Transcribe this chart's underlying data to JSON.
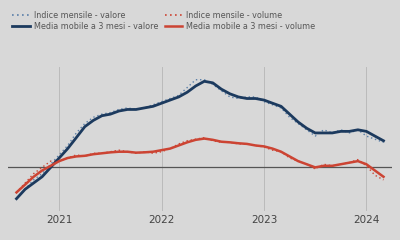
{
  "legend": [
    {
      "label": "Indice mensile - valore",
      "color": "#5a7fa8",
      "linestyle": "dotted",
      "linewidth": 1.0
    },
    {
      "label": "Indice mensile - volume",
      "color": "#cc4433",
      "linestyle": "dotted",
      "linewidth": 1.0
    },
    {
      "label": "Media mobile a 3 mesi - valore",
      "color": "#1c3a5e",
      "linestyle": "solid",
      "linewidth": 2.0
    },
    {
      "label": "Media mobile a 3 mesi - volume",
      "color": "#cc4433",
      "linestyle": "solid",
      "linewidth": 1.8
    }
  ],
  "background_color": "#d8d8d8",
  "plot_bg_color": "#d8d8d8",
  "grid_color": "#bbbbbb",
  "zero_line_color": "#555555",
  "xticks": [
    2021.0,
    2022.0,
    2023.0,
    2024.0
  ],
  "xlim": [
    2020.5,
    2024.25
  ],
  "ylim": [
    -14,
    32
  ],
  "legend_fontsize": 5.8,
  "tick_fontsize": 7.5,
  "t_valore_monthly": [
    2020.583,
    2020.667,
    2020.75,
    2020.833,
    2020.917,
    2021.0,
    2021.083,
    2021.167,
    2021.25,
    2021.333,
    2021.417,
    2021.5,
    2021.583,
    2021.667,
    2021.75,
    2021.833,
    2021.917,
    2022.0,
    2022.083,
    2022.167,
    2022.25,
    2022.333,
    2022.417,
    2022.5,
    2022.583,
    2022.667,
    2022.75,
    2022.833,
    2022.917,
    2023.0,
    2023.083,
    2023.167,
    2023.25,
    2023.333,
    2023.417,
    2023.5,
    2023.583,
    2023.667,
    2023.75,
    2023.833,
    2023.917,
    2024.0,
    2024.083,
    2024.167
  ],
  "y_valore_monthly": [
    -10,
    -7,
    -4,
    -2,
    1,
    4,
    7,
    11,
    14,
    16,
    17,
    17.5,
    18.5,
    19,
    18.5,
    19,
    20,
    21,
    22,
    23,
    25.5,
    28,
    28,
    26.5,
    24.5,
    22.5,
    22,
    22.5,
    22.5,
    21,
    20,
    19,
    16,
    14,
    12,
    10,
    12,
    11,
    12,
    11,
    12,
    10,
    9,
    8
  ],
  "y_valore_ma": [
    -10,
    -7,
    -5,
    -3,
    0,
    3,
    6,
    9.5,
    13,
    15,
    16.5,
    17,
    18,
    18.5,
    18.5,
    19,
    19.5,
    20.5,
    21.5,
    22.5,
    24,
    26,
    27.5,
    27,
    25,
    23.5,
    22.5,
    22,
    22,
    21.5,
    20.5,
    19.5,
    17,
    14.5,
    12.5,
    11,
    11,
    11,
    11.5,
    11.5,
    12,
    11.5,
    10,
    8.5
  ],
  "t_volume_monthly": [
    2020.583,
    2020.667,
    2020.75,
    2020.833,
    2020.917,
    2021.0,
    2021.083,
    2021.167,
    2021.25,
    2021.333,
    2021.417,
    2021.5,
    2021.583,
    2021.667,
    2021.75,
    2021.833,
    2021.917,
    2022.0,
    2022.083,
    2022.167,
    2022.25,
    2022.333,
    2022.417,
    2022.5,
    2022.583,
    2022.667,
    2022.75,
    2022.833,
    2022.917,
    2023.0,
    2023.083,
    2023.167,
    2023.25,
    2023.333,
    2023.417,
    2023.5,
    2023.583,
    2023.667,
    2023.75,
    2023.833,
    2023.917,
    2024.0,
    2024.083,
    2024.167
  ],
  "y_volume_monthly": [
    -8,
    -5,
    -2,
    0,
    2,
    2,
    3,
    4,
    3.5,
    4.5,
    4.5,
    5,
    5.5,
    5,
    4.5,
    5,
    4.5,
    5,
    6,
    7.5,
    8.5,
    9,
    9.5,
    8.5,
    8,
    8,
    7.5,
    7.5,
    7,
    6.5,
    5.5,
    5,
    3,
    2,
    1,
    -0.5,
    1,
    0.5,
    1,
    1.5,
    2.5,
    0.5,
    -2.5,
    -4
  ],
  "y_volume_ma": [
    -8,
    -5.5,
    -3,
    -1,
    0.5,
    2,
    3,
    3.5,
    3.7,
    4.2,
    4.5,
    4.8,
    5,
    5,
    4.7,
    4.8,
    5,
    5.5,
    6,
    7,
    8,
    8.8,
    9.2,
    8.8,
    8.2,
    8,
    7.7,
    7.5,
    7,
    6.7,
    6,
    5,
    3.5,
    2,
    1,
    0,
    0.5,
    0.5,
    1,
    1.5,
    2,
    1,
    -1,
    -3
  ]
}
